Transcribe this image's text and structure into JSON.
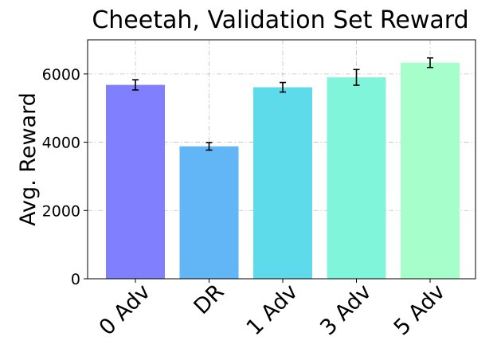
{
  "chart_data": {
    "type": "bar",
    "title": "Cheetah, Validation Set Reward",
    "xlabel": "",
    "ylabel": "Avg. Reward",
    "categories": [
      "0 Adv",
      "DR",
      "1 Adv",
      "3 Adv",
      "5 Adv"
    ],
    "values": [
      5680,
      3880,
      5610,
      5900,
      6330
    ],
    "errors": [
      150,
      110,
      140,
      230,
      140
    ],
    "colors": [
      "#8080ff",
      "#62b6f6",
      "#5edbeb",
      "#80f5da",
      "#a6ffca"
    ],
    "ylim": [
      0,
      7000
    ],
    "yticks": [
      0,
      2000,
      4000,
      6000
    ],
    "ytick_labels": [
      "0",
      "2000",
      "4000",
      "6000"
    ],
    "grid": true,
    "legend": null
  }
}
